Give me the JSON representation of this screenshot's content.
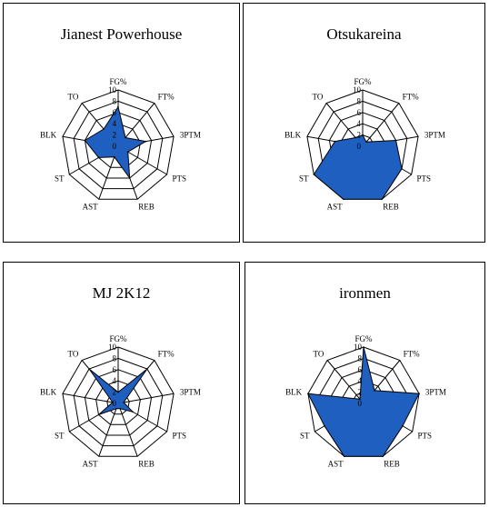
{
  "chart_data": [
    {
      "type": "radar",
      "title": "Jianest Powerhouse",
      "categories": [
        "FG%",
        "FT%",
        "3PTM",
        "PTS",
        "REB",
        "AST",
        "ST",
        "BLK",
        "TO"
      ],
      "ticks": [
        "0",
        "2",
        "4",
        "6",
        "8",
        "10"
      ],
      "rlim": [
        0,
        10
      ],
      "values": [
        7,
        2,
        5,
        2,
        6,
        2,
        4,
        6,
        4
      ],
      "color": "#1f5fbf"
    },
    {
      "type": "radar",
      "title": "Otsukareina",
      "categories": [
        "FG%",
        "FT%",
        "3PTM",
        "PTS",
        "REB",
        "AST",
        "ST",
        "BLK",
        "TO"
      ],
      "ticks": [
        "0",
        "2",
        "4",
        "6",
        "8",
        "10"
      ],
      "rlim": [
        0,
        10
      ],
      "values": [
        2,
        1,
        6,
        8,
        10,
        10,
        10,
        5,
        2
      ],
      "color": "#1f5fbf"
    },
    {
      "type": "radar",
      "title": "MJ 2K12",
      "categories": [
        "FG%",
        "FT%",
        "3PTM",
        "PTS",
        "REB",
        "AST",
        "ST",
        "BLK",
        "TO"
      ],
      "ticks": [
        "0",
        "2",
        "4",
        "6",
        "8",
        "10"
      ],
      "rlim": [
        0,
        10
      ],
      "values": [
        2,
        8,
        1,
        3,
        1,
        1,
        4,
        1,
        8
      ],
      "color": "#1f5fbf"
    },
    {
      "type": "radar",
      "title": "ironmen",
      "categories": [
        "FG%",
        "FT%",
        "3PTM",
        "PTS",
        "REB",
        "AST",
        "ST",
        "BLK",
        "TO"
      ],
      "ticks": [
        "0",
        "2",
        "4",
        "6",
        "8",
        "10"
      ],
      "rlim": [
        0,
        10
      ],
      "values": [
        10,
        3,
        10,
        8,
        10,
        10,
        8,
        10,
        1
      ],
      "color": "#1f5fbf"
    }
  ]
}
